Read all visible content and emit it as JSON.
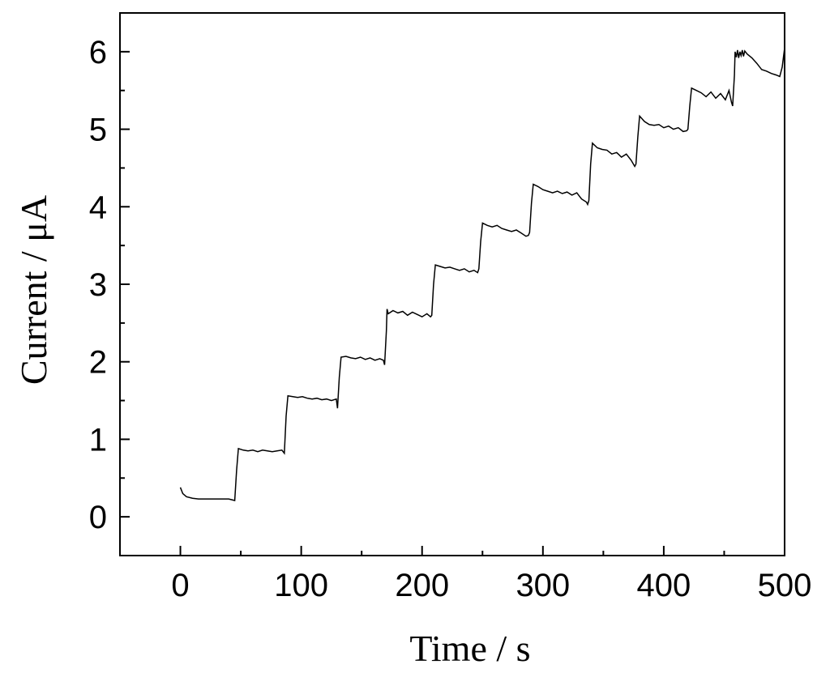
{
  "chart_data": {
    "type": "line",
    "title": "",
    "xlabel": "Time / s",
    "ylabel": "Current / μA",
    "xlim": [
      -50,
      500
    ],
    "ylim": [
      -0.5,
      6.5
    ],
    "x_ticks": [
      0,
      100,
      200,
      300,
      400,
      500
    ],
    "x_tick_labels": [
      "0",
      "100",
      "200",
      "300",
      "400",
      "500"
    ],
    "y_ticks": [
      0,
      1,
      2,
      3,
      4,
      5,
      6
    ],
    "y_tick_labels": [
      "0",
      "1",
      "2",
      "3",
      "4",
      "5",
      "6"
    ],
    "grid": false,
    "legend": "none",
    "line_color": "#000000",
    "series": [
      {
        "x": [
          0,
          2,
          5,
          10,
          15,
          20,
          25,
          30,
          35,
          40,
          45,
          46.5,
          48,
          52,
          56,
          60,
          64,
          68,
          72,
          76,
          80,
          84,
          86,
          87.5,
          89,
          93,
          97,
          101,
          105,
          109,
          113,
          117,
          121,
          125,
          129,
          130,
          131.5,
          133,
          137,
          141,
          145,
          149,
          153,
          157,
          161,
          165,
          168,
          169,
          170.5,
          171,
          172,
          176,
          180,
          184,
          188,
          192,
          196,
          200,
          204,
          207,
          208,
          209.5,
          211,
          215,
          219,
          223,
          227,
          231,
          235,
          239,
          243,
          246,
          247,
          248.5,
          250,
          254,
          258,
          262,
          266,
          270,
          274,
          278,
          282,
          286,
          288,
          289,
          290.5,
          292,
          296,
          300,
          304,
          308,
          312,
          316,
          320,
          324,
          328,
          332,
          336,
          337,
          338,
          339.5,
          341,
          345,
          349,
          353,
          357,
          361,
          365,
          369,
          373,
          376,
          377,
          378.5,
          380,
          384,
          388,
          392,
          396,
          400,
          404,
          408,
          412,
          416,
          419,
          420,
          421.5,
          423,
          427,
          431,
          435,
          439,
          443,
          447,
          451,
          454,
          456,
          457,
          458.5,
          459,
          460,
          461,
          462,
          463,
          464,
          465,
          466,
          467,
          469,
          473,
          477,
          481,
          485,
          489,
          493,
          496,
          498,
          500
        ],
        "y": [
          0.38,
          0.3,
          0.26,
          0.24,
          0.23,
          0.23,
          0.23,
          0.23,
          0.23,
          0.23,
          0.21,
          0.6,
          0.88,
          0.86,
          0.85,
          0.86,
          0.84,
          0.86,
          0.85,
          0.84,
          0.85,
          0.86,
          0.82,
          1.3,
          1.56,
          1.55,
          1.54,
          1.55,
          1.53,
          1.52,
          1.53,
          1.51,
          1.52,
          1.5,
          1.52,
          1.4,
          1.8,
          2.06,
          2.07,
          2.05,
          2.04,
          2.06,
          2.03,
          2.05,
          2.02,
          2.04,
          2.02,
          1.96,
          2.4,
          2.68,
          2.62,
          2.66,
          2.63,
          2.65,
          2.6,
          2.64,
          2.61,
          2.58,
          2.62,
          2.58,
          2.6,
          3.0,
          3.25,
          3.23,
          3.21,
          3.22,
          3.2,
          3.18,
          3.2,
          3.16,
          3.18,
          3.15,
          3.2,
          3.55,
          3.79,
          3.76,
          3.74,
          3.76,
          3.72,
          3.7,
          3.68,
          3.7,
          3.66,
          3.62,
          3.63,
          3.67,
          4.05,
          4.29,
          4.26,
          4.22,
          4.2,
          4.18,
          4.2,
          4.17,
          4.19,
          4.15,
          4.18,
          4.1,
          4.06,
          4.03,
          4.08,
          4.55,
          4.82,
          4.76,
          4.74,
          4.73,
          4.68,
          4.7,
          4.64,
          4.68,
          4.6,
          4.52,
          4.55,
          4.9,
          5.17,
          5.1,
          5.06,
          5.05,
          5.06,
          5.02,
          5.04,
          5.0,
          5.02,
          4.97,
          4.98,
          5.0,
          5.3,
          5.53,
          5.5,
          5.47,
          5.42,
          5.48,
          5.4,
          5.46,
          5.38,
          5.5,
          5.35,
          5.3,
          5.7,
          6.0,
          5.93,
          6.02,
          5.92,
          6.0,
          5.95,
          6.02,
          5.94,
          6.01,
          5.97,
          5.92,
          5.85,
          5.77,
          5.75,
          5.72,
          5.7,
          5.68,
          5.8,
          6.05
        ]
      }
    ]
  }
}
